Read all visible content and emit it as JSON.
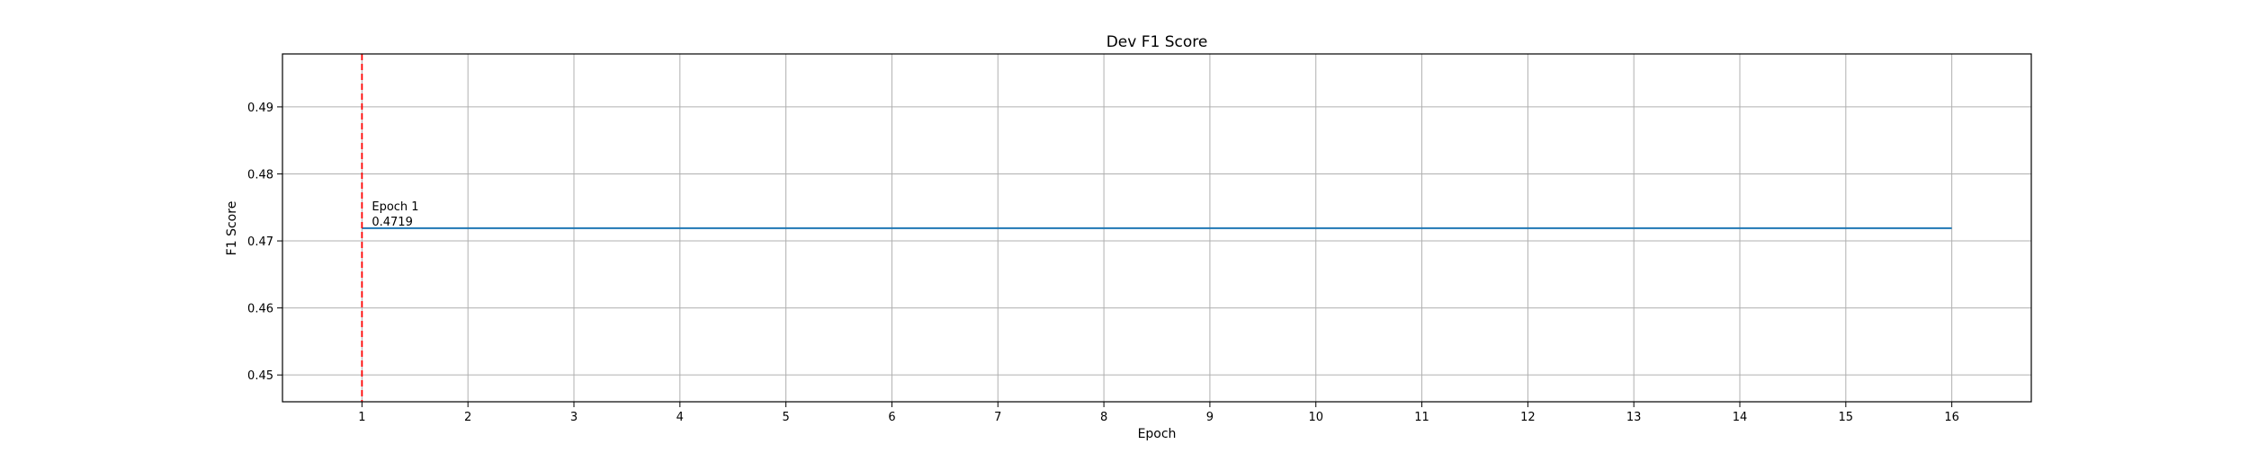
{
  "chart_data": {
    "type": "line",
    "title": "Dev F1 Score",
    "xlabel": "Epoch",
    "ylabel": "F1 Score",
    "x": [
      1,
      2,
      3,
      4,
      5,
      6,
      7,
      8,
      9,
      10,
      11,
      12,
      13,
      14,
      15,
      16
    ],
    "series": [
      {
        "values": [
          0.4719,
          0.4719,
          0.4719,
          0.4719,
          0.4719,
          0.4719,
          0.4719,
          0.4719,
          0.4719,
          0.4719,
          0.4719,
          0.4719,
          0.4719,
          0.4719,
          0.4719,
          0.4719
        ],
        "color": "#1f77b4"
      }
    ],
    "xlim": [
      0.25,
      16.75
    ],
    "ylim": [
      0.446,
      0.4979
    ],
    "xticks": [
      1,
      2,
      3,
      4,
      5,
      6,
      7,
      8,
      9,
      10,
      11,
      12,
      13,
      14,
      15,
      16
    ],
    "yticks": [
      0.45,
      0.46,
      0.47,
      0.48,
      0.49
    ],
    "ytick_labels": [
      "0.45",
      "0.46",
      "0.47",
      "0.48",
      "0.49"
    ],
    "grid": true,
    "marker_line": {
      "x": 1,
      "color": "#ff0000",
      "style": "dashed"
    },
    "annotation": {
      "line1": "Epoch 1",
      "line2": "0.4719",
      "x": 1,
      "y": 0.4719
    }
  }
}
